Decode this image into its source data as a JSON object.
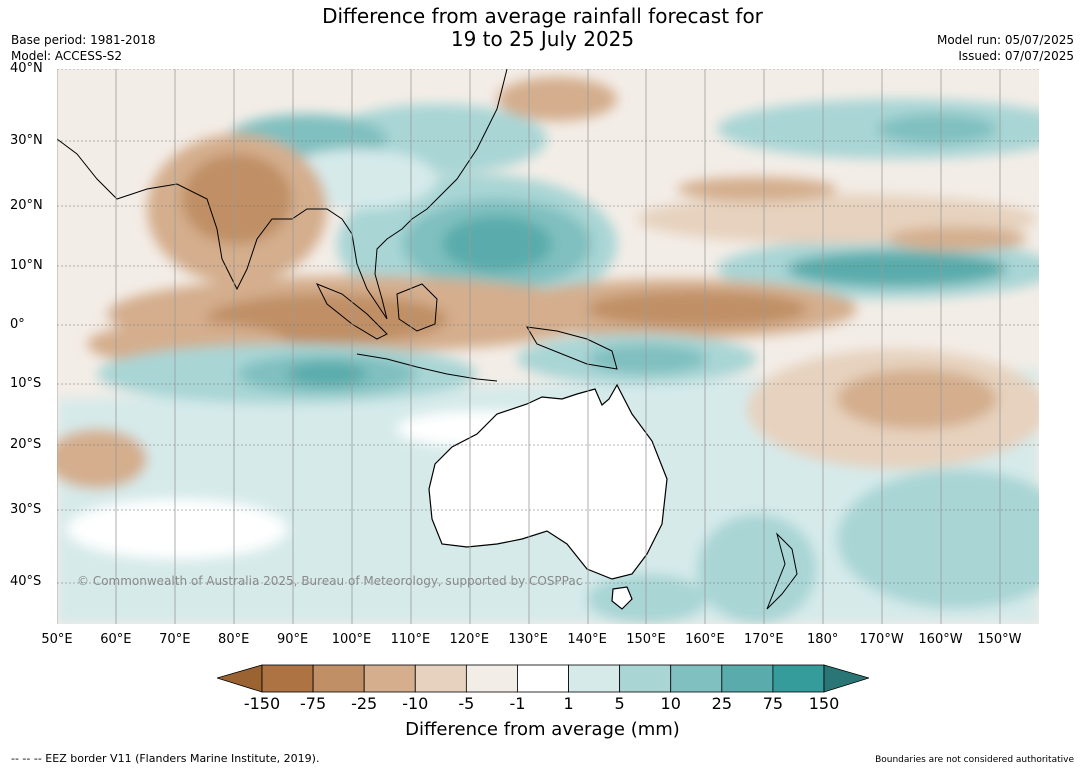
{
  "title": {
    "line1": "Difference from average rainfall forecast for",
    "line2": "19 to 25 July 2025"
  },
  "meta_left": {
    "base_period": "Base period: 1981-2018",
    "model": "Model: ACCESS-S2"
  },
  "meta_right": {
    "model_run": "Model run: 05/07/2025",
    "issued": "Issued: 07/07/2025"
  },
  "lat_labels": [
    "40°N",
    "30°N",
    "20°N",
    "10°N",
    "0°",
    "10°S",
    "20°S",
    "30°S",
    "40°S"
  ],
  "lon_labels": [
    "50°E",
    "60°E",
    "70°E",
    "80°E",
    "90°E",
    "100°E",
    "110°E",
    "120°E",
    "130°E",
    "140°E",
    "150°E",
    "160°E",
    "170°E",
    "180°",
    "170°W",
    "160°W",
    "150°W"
  ],
  "copyright": "© Commonwealth of Australia 2025, Bureau of Meteorology, supported by COSPPac",
  "colorbar": {
    "labels": [
      "-150",
      "-75",
      "-25",
      "-10",
      "-5",
      "-1",
      "1",
      "5",
      "10",
      "25",
      "75",
      "150"
    ],
    "colors": [
      "#9b6331",
      "#ad7342",
      "#c08f65",
      "#d4ae8d",
      "#e6d2be",
      "#f3ede7",
      "#ffffff",
      "#d6eaea",
      "#a9d5d5",
      "#80c0c0",
      "#5aacac",
      "#359b9b",
      "#2a7676"
    ],
    "title": "Difference from average (mm)"
  },
  "footer": {
    "left": "--  --  -- EEZ border V11 (Flanders Marine Institute, 2019).",
    "right": "Boundaries are not considered authoritative"
  }
}
